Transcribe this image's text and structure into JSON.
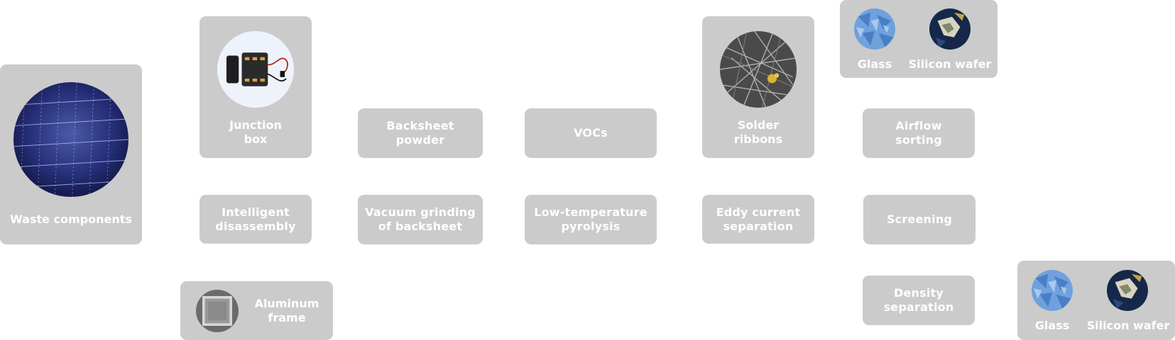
{
  "nodes": {
    "waste": "Waste components",
    "junction": "Junction\nbox",
    "intelligent": "Intelligent\ndisassembly",
    "aluminum": "Aluminum\nframe",
    "backsheet_powder": "Backsheet\npowder",
    "vacuum": "Vacuum grinding\nof backsheet",
    "vocs": "VOCs",
    "pyrolysis": "Low-temperature\npyrolysis",
    "solder": "Solder\nribbons",
    "eddy": "Eddy current\nseparation",
    "airflow": "Airflow\nsorting",
    "screening": "Screening",
    "density": "Density\nseparation"
  },
  "output_top": {
    "glass": "Glass",
    "wafer": "Silicon wafer"
  },
  "output_bottom": {
    "glass": "Glass",
    "wafer": "Silicon wafer"
  },
  "colors": {
    "box": "#cbcbcb",
    "text": "#ffffff"
  }
}
